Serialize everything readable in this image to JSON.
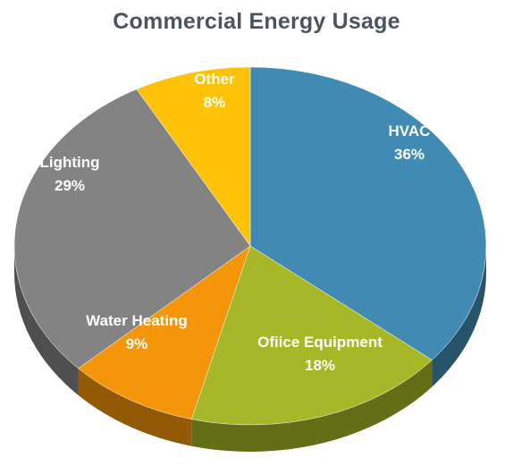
{
  "chart_data": {
    "type": "pie",
    "title": "Commercial Energy Usage",
    "slices": [
      {
        "label": "HVAC",
        "value": 36,
        "value_label": "36%",
        "color": "#418ab3"
      },
      {
        "label": "Ofiice Equipment",
        "value": 18,
        "value_label": "18%",
        "color": "#a6b727"
      },
      {
        "label": "Water Heating",
        "value": 9,
        "value_label": "9%",
        "color": "#f59509"
      },
      {
        "label": "Lighting",
        "value": 29,
        "value_label": "29%",
        "color": "#838383"
      },
      {
        "label": "Other",
        "value": 8,
        "value_label": "8%",
        "color": "#fec306"
      }
    ],
    "legend": "none",
    "style": "3d-tilted"
  }
}
